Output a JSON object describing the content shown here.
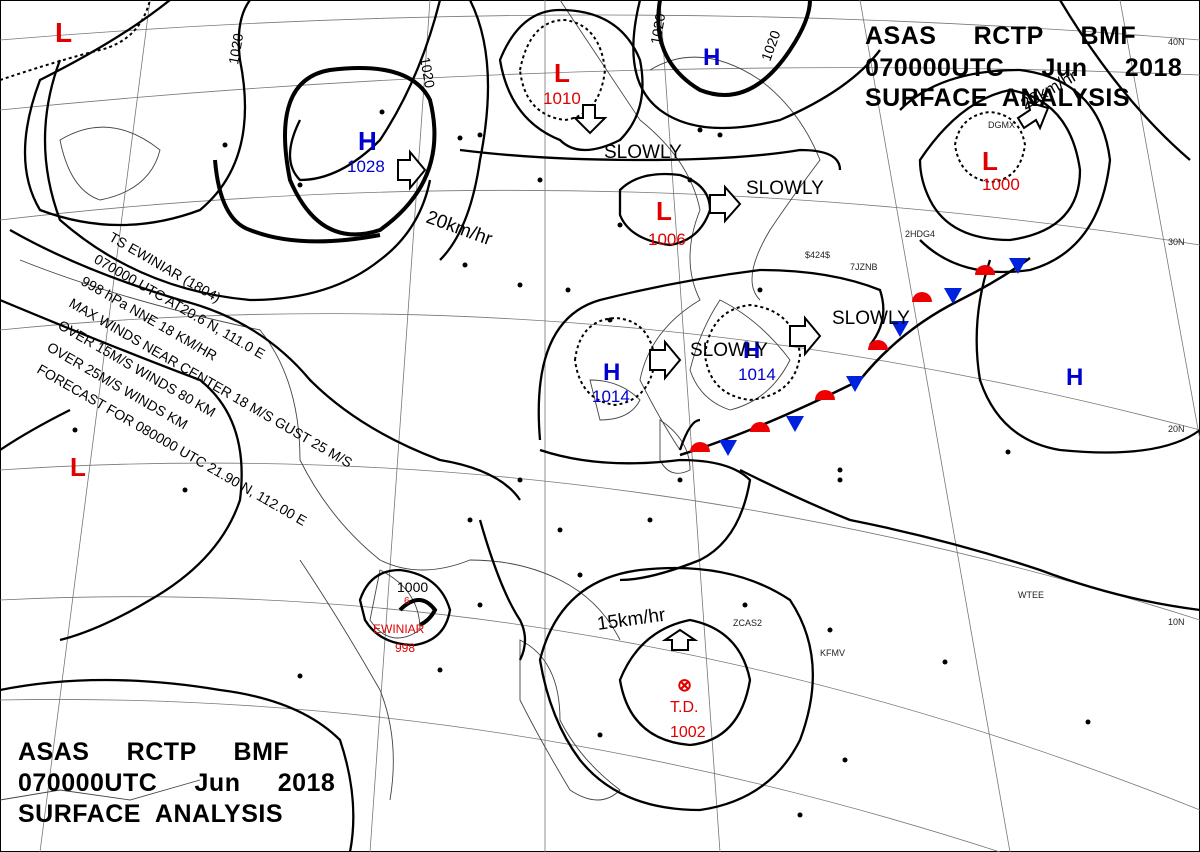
{
  "header_top_right": {
    "line1": "ASAS     RCTP     BMF",
    "line2": "070000UTC     Jun     2018",
    "line3": "SURFACE  ANALYSIS"
  },
  "header_bottom_left": {
    "line1": "ASAS     RCTP     BMF",
    "line2": "070000UTC     Jun     2018",
    "line3": "SURFACE  ANALYSIS"
  },
  "latitude_labels": [
    "40N",
    "30N",
    "20N",
    "10N"
  ],
  "isobar_labels": [
    "1020",
    "1020",
    "1020",
    "1020"
  ],
  "pressure_systems": [
    {
      "type": "L",
      "value": "",
      "color": "#e00000"
    },
    {
      "type": "H",
      "value": "1028",
      "color": "#0000d0"
    },
    {
      "type": "L",
      "value": "1010",
      "color": "#e00000"
    },
    {
      "type": "H",
      "value": "",
      "color": "#0000d0"
    },
    {
      "type": "L",
      "value": "1000",
      "color": "#e00000"
    },
    {
      "type": "L",
      "value": "1006",
      "color": "#e00000"
    },
    {
      "type": "H",
      "value": "1014",
      "color": "#0000d0"
    },
    {
      "type": "H",
      "value": "1014",
      "color": "#0000d0"
    },
    {
      "type": "H",
      "value": "",
      "color": "#0000d0"
    },
    {
      "type": "L",
      "value": "",
      "color": "#e00000"
    }
  ],
  "motion_labels": {
    "h1028": "20km/hr",
    "l1000": "20km/hr",
    "l1010": "SLOWLY",
    "l1006": "SLOWLY",
    "h1014_east": "SLOWLY",
    "h1014_west": "SLOWLY",
    "front": "SLOWLY",
    "td": "15km/hr"
  },
  "storm_info": {
    "line1": "TS  EWINIAR  (1804)",
    "line2": "070000 UTC  AT20.6 N, 111.0 E",
    "line3": "998 hPa  NNE 18 KM/HR",
    "line4": "MAX WINDS NEAR CENTER 18 M/S GUST 25 M/S",
    "line5": "OVER 15M/S WINDS  80 KM",
    "line6": "OVER 25M/S WINDS  KM",
    "line7": "FORECAST FOR 080000 UTC 21.90 N, 112.00 E"
  },
  "typhoon": {
    "name": "EWINIAR",
    "pressure": "998",
    "isobar": "1000",
    "color": "#e00000"
  },
  "tropical_depression": {
    "label": "T.D.",
    "pressure": "1002",
    "color": "#e00000"
  },
  "station_codes": [
    "DGMX",
    "2HDG4",
    "7JZNB",
    "$424$",
    "ZCAS2",
    "KFMV",
    "WTEE"
  ],
  "colors": {
    "cold_front": "#0022dd",
    "warm_front": "#ee0000",
    "low": "#e00000",
    "high": "#0000d0"
  }
}
